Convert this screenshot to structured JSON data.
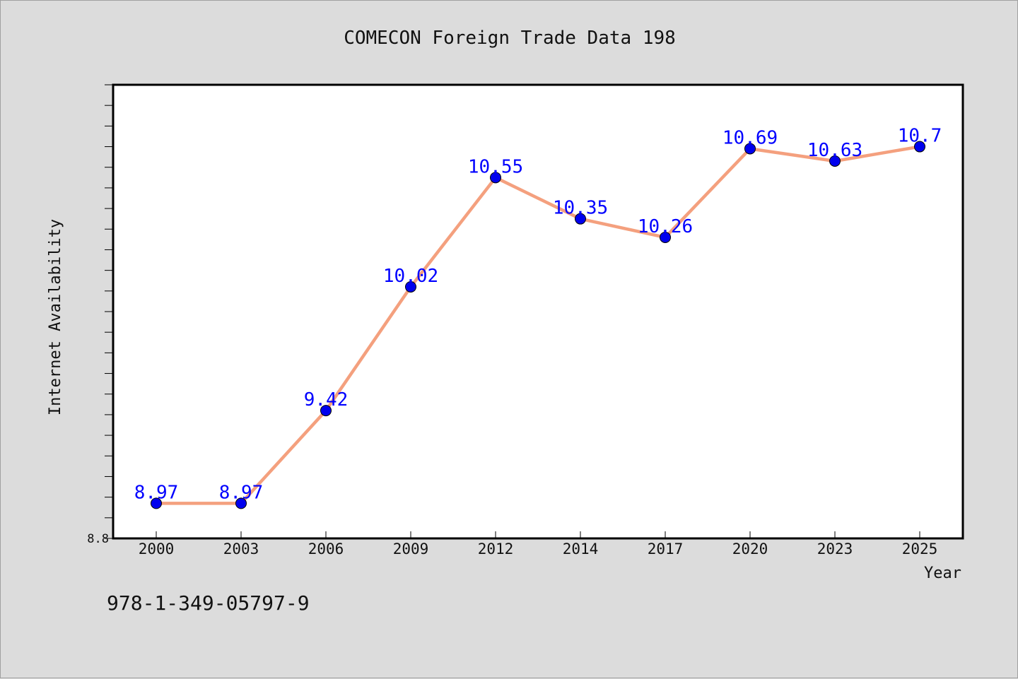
{
  "chart_data": {
    "type": "line",
    "title": "COMECON Foreign Trade Data 198",
    "xlabel": "Year",
    "ylabel": "Internet Availability",
    "categories": [
      "2000",
      "2003",
      "2006",
      "2009",
      "2012",
      "2014",
      "2017",
      "2020",
      "2023",
      "2025"
    ],
    "series": [
      {
        "values": [
          8.97,
          8.97,
          9.42,
          10.02,
          10.55,
          10.35,
          10.26,
          10.69,
          10.63,
          10.7
        ],
        "data_labels": [
          "8.97",
          "8.97",
          "9.42",
          "10.02",
          "10.55",
          "10.35",
          "10.26",
          "10.69",
          "10.63",
          "10.7"
        ],
        "line_color": "#f4a07e",
        "marker_color": "#0000ee",
        "label_color": "#0000ff"
      }
    ],
    "ylim": [
      8.8,
      11.0
    ],
    "y_tick_labels": [
      "8.8"
    ],
    "y_minor_step": 0.1,
    "grid": false,
    "legend": "none"
  },
  "footer": {
    "isbn": "978-1-349-05797-9"
  }
}
